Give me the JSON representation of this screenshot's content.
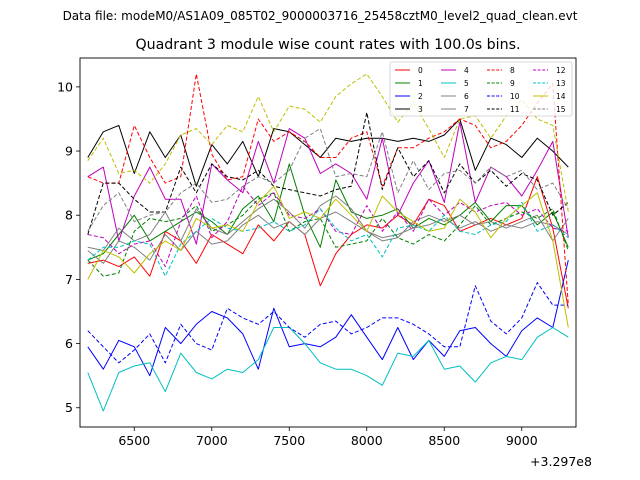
{
  "header": {
    "supertitle": "Data file: modeM0/AS1A09_085T02_9000003716_25458cztM0_level2_quad_clean.evt"
  },
  "chart_data": {
    "type": "line",
    "title": "Quadrant 3 module wise count rates with 100.0s bins.",
    "xlabel": "",
    "ylabel": "",
    "x_offset_label": "+3.297e8",
    "xlim": [
      6150,
      9350
    ],
    "ylim": [
      4.7,
      10.45
    ],
    "xticks": [
      6500,
      7000,
      7500,
      8000,
      8500,
      9000
    ],
    "yticks": [
      5,
      6,
      7,
      8,
      9,
      10
    ],
    "grid": false,
    "legend_position": "top-right",
    "x": [
      6200,
      6300,
      6400,
      6500,
      6600,
      6700,
      6800,
      6900,
      7000,
      7100,
      7200,
      7300,
      7400,
      7500,
      7600,
      7700,
      7800,
      7900,
      8000,
      8100,
      8200,
      8300,
      8400,
      8500,
      8600,
      8700,
      8800,
      8900,
      9000,
      9100,
      9200,
      9300
    ],
    "series": [
      {
        "name": "0",
        "color": "#ff0000",
        "dash": false,
        "values": [
          7.25,
          7.3,
          7.2,
          7.35,
          7.05,
          7.75,
          7.6,
          7.25,
          7.7,
          7.55,
          7.4,
          7.85,
          7.6,
          7.9,
          7.7,
          6.9,
          7.4,
          7.7,
          7.85,
          7.8,
          8.0,
          7.85,
          8.25,
          8.15,
          7.75,
          7.85,
          7.95,
          7.85,
          7.95,
          8.6,
          7.8,
          6.55
        ]
      },
      {
        "name": "1",
        "color": "#008000",
        "dash": false,
        "values": [
          7.3,
          7.4,
          7.7,
          8.0,
          7.6,
          7.75,
          7.9,
          8.05,
          7.9,
          7.7,
          8.1,
          8.3,
          7.9,
          8.8,
          8.0,
          7.5,
          8.55,
          8.05,
          7.95,
          8.0,
          8.1,
          7.8,
          7.95,
          7.85,
          8.0,
          8.2,
          7.9,
          8.15,
          8.15,
          7.85,
          8.05,
          7.5
        ]
      },
      {
        "name": "2",
        "color": "#0000ff",
        "dash": false,
        "values": [
          5.95,
          5.6,
          6.05,
          5.95,
          5.5,
          6.25,
          6.0,
          6.3,
          6.5,
          6.4,
          6.15,
          5.6,
          6.55,
          5.95,
          6.0,
          5.95,
          6.1,
          6.45,
          6.1,
          5.75,
          6.25,
          5.75,
          6.05,
          5.8,
          6.2,
          6.25,
          6.0,
          5.8,
          6.2,
          6.4,
          6.25,
          7.3
        ]
      },
      {
        "name": "3",
        "color": "#000000",
        "dash": false,
        "values": [
          8.9,
          9.3,
          9.4,
          8.65,
          9.3,
          8.9,
          9.25,
          8.45,
          9.1,
          8.8,
          9.15,
          8.6,
          9.35,
          9.3,
          9.1,
          8.9,
          9.2,
          9.15,
          9.2,
          9.2,
          9.15,
          9.2,
          9.15,
          9.25,
          9.5,
          8.7,
          9.2,
          9.1,
          8.9,
          9.2,
          9.0,
          8.75
        ]
      },
      {
        "name": "4",
        "color": "#bf00bf",
        "dash": false,
        "values": [
          8.6,
          8.75,
          7.6,
          8.3,
          8.75,
          8.25,
          8.25,
          7.55,
          8.8,
          8.55,
          8.35,
          9.15,
          8.5,
          9.35,
          9.2,
          8.65,
          8.8,
          8.65,
          8.25,
          9.2,
          8.0,
          8.5,
          8.85,
          8.2,
          9.45,
          8.2,
          8.75,
          8.6,
          8.3,
          8.7,
          9.15,
          7.65
        ]
      },
      {
        "name": "5",
        "color": "#00bfbf",
        "dash": false,
        "values": [
          5.55,
          4.95,
          5.55,
          5.65,
          5.7,
          5.25,
          5.85,
          5.55,
          5.45,
          5.6,
          5.55,
          5.75,
          6.25,
          6.25,
          6.0,
          5.7,
          5.6,
          5.6,
          5.5,
          5.35,
          5.85,
          5.8,
          6.05,
          5.6,
          5.65,
          5.4,
          5.7,
          5.8,
          5.75,
          6.1,
          6.25,
          6.1
        ]
      },
      {
        "name": "6",
        "color": "#808080",
        "dash": false,
        "values": [
          7.5,
          7.45,
          7.8,
          7.6,
          7.7,
          8.05,
          7.6,
          8.1,
          7.8,
          7.7,
          7.9,
          8.1,
          8.25,
          8.05,
          7.8,
          8.15,
          8.3,
          8.1,
          7.75,
          7.6,
          7.65,
          7.9,
          8.0,
          7.9,
          8.0,
          7.85,
          7.9,
          7.8,
          7.9,
          8.0,
          7.6,
          7.95
        ]
      },
      {
        "name": "7",
        "color": "#808080",
        "dash": false,
        "values": [
          7.45,
          7.25,
          7.6,
          7.5,
          7.3,
          7.7,
          7.45,
          7.75,
          7.55,
          7.6,
          7.85,
          8.0,
          7.8,
          7.9,
          7.7,
          7.95,
          8.05,
          7.9,
          7.75,
          7.65,
          7.7,
          7.8,
          7.85,
          7.95,
          7.8,
          7.9,
          7.75,
          7.85,
          7.8,
          7.9,
          7.85,
          7.7
        ]
      },
      {
        "name": "8",
        "color": "#ff0000",
        "dash": true,
        "values": [
          8.6,
          8.5,
          8.5,
          9.4,
          8.9,
          8.5,
          8.6,
          10.2,
          8.95,
          8.55,
          8.6,
          9.5,
          9.15,
          9.3,
          9.15,
          8.9,
          8.9,
          9.2,
          9.3,
          8.45,
          9.05,
          9.05,
          9.2,
          9.3,
          9.5,
          9.4,
          9.05,
          9.15,
          9.4,
          9.75,
          10.05,
          6.6
        ]
      },
      {
        "name": "9",
        "color": "#008000",
        "dash": true,
        "values": [
          7.3,
          7.05,
          7.1,
          7.75,
          7.95,
          7.9,
          7.95,
          8.15,
          7.75,
          7.85,
          8.0,
          8.25,
          8.35,
          7.75,
          7.9,
          7.95,
          7.5,
          7.55,
          7.6,
          7.95,
          7.65,
          7.55,
          7.7,
          7.6,
          7.85,
          8.15,
          7.85,
          7.95,
          8.05,
          7.95,
          8.1,
          7.45
        ]
      },
      {
        "name": "10",
        "color": "#0000ff",
        "dash": true,
        "values": [
          6.2,
          5.95,
          5.7,
          5.9,
          6.15,
          5.7,
          6.3,
          6.0,
          5.9,
          6.55,
          6.4,
          6.3,
          6.5,
          6.25,
          6.1,
          6.3,
          6.35,
          6.15,
          6.25,
          6.4,
          6.4,
          6.3,
          6.15,
          5.95,
          5.95,
          6.9,
          6.35,
          6.15,
          6.4,
          6.95,
          6.6,
          6.6
        ]
      },
      {
        "name": "11",
        "color": "#000000",
        "dash": true,
        "values": [
          7.7,
          8.5,
          8.5,
          8.25,
          8.05,
          8.05,
          8.75,
          8.35,
          8.8,
          8.6,
          8.55,
          8.7,
          8.45,
          8.4,
          8.35,
          8.3,
          8.4,
          8.45,
          9.6,
          8.4,
          9.05,
          8.6,
          8.85,
          8.35,
          8.8,
          8.5,
          8.7,
          8.45,
          8.65,
          8.55,
          8.0,
          8.2
        ]
      },
      {
        "name": "12",
        "color": "#bf00bf",
        "dash": true,
        "values": [
          7.7,
          7.65,
          7.4,
          7.55,
          7.6,
          7.2,
          7.9,
          8.3,
          7.65,
          7.9,
          8.45,
          8.15,
          8.35,
          8.0,
          7.95,
          8.1,
          7.75,
          7.7,
          8.15,
          7.75,
          8.05,
          7.75,
          8.25,
          8.0,
          8.2,
          8.05,
          8.15,
          8.2,
          8.0,
          8.1,
          7.8,
          7.75
        ]
      },
      {
        "name": "13",
        "color": "#00bfbf",
        "dash": true,
        "values": [
          7.3,
          7.5,
          7.5,
          7.6,
          7.55,
          7.05,
          7.55,
          7.75,
          7.95,
          7.8,
          7.75,
          7.8,
          7.9,
          7.75,
          7.85,
          8.1,
          7.8,
          7.6,
          7.7,
          7.35,
          7.8,
          7.85,
          7.75,
          8.0,
          7.75,
          7.7,
          7.85,
          7.9,
          8.2,
          7.75,
          7.85,
          7.65
        ]
      },
      {
        "name": "14",
        "color": "#bfbf00",
        "dash": false,
        "values": [
          7.0,
          7.45,
          7.35,
          7.1,
          7.4,
          7.6,
          7.45,
          7.95,
          7.8,
          7.85,
          7.75,
          8.2,
          8.45,
          7.95,
          8.05,
          7.95,
          8.25,
          8.0,
          7.75,
          8.3,
          8.05,
          7.9,
          7.75,
          7.8,
          8.25,
          8.05,
          7.65,
          7.95,
          8.15,
          8.35,
          7.6,
          6.25
        ]
      },
      {
        "name": "15",
        "color": "#808080",
        "dash": true,
        "values": [
          7.75,
          8.15,
          8.35,
          7.9,
          8.0,
          8.05,
          8.35,
          8.5,
          8.2,
          8.25,
          8.45,
          8.6,
          8.5,
          8.7,
          9.2,
          9.35,
          8.6,
          8.65,
          8.6,
          9.3,
          8.35,
          8.85,
          8.4,
          8.65,
          8.7,
          8.5,
          8.75,
          8.6,
          8.7,
          8.4,
          8.5,
          8.1
        ]
      },
      {
        "name": "",
        "color": "#bfbf00",
        "dash": true,
        "values": [
          8.85,
          9.2,
          8.65,
          8.7,
          8.5,
          8.8,
          9.25,
          9.35,
          9.1,
          9.4,
          9.3,
          9.85,
          9.3,
          9.7,
          9.65,
          9.45,
          9.85,
          10.05,
          10.2,
          9.85,
          9.45,
          9.75,
          9.35,
          8.9,
          9.5,
          9.55,
          9.2,
          9.55,
          9.8,
          9.5,
          9.4,
          8.05
        ]
      }
    ]
  }
}
